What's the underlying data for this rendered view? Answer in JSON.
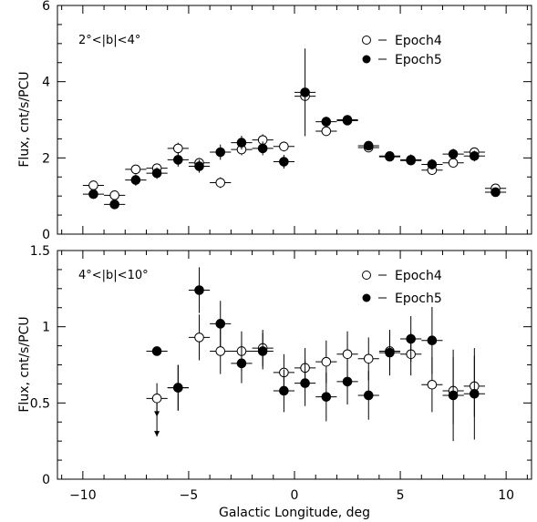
{
  "colors": {
    "marker": "#000000",
    "background": "#ffffff"
  },
  "legend_markers": {
    "open": "open-circle",
    "filled": "filled-circle"
  },
  "xlabel": "Galactic Longitude, deg",
  "xticks": [
    "−10",
    "−5",
    "0",
    "5",
    "10"
  ],
  "chart_data": [
    {
      "type": "scatter",
      "panel_label": "2°<|b|<4°",
      "ylabel": "Flux, cnt/s/PCU",
      "xlim": [
        -11.2,
        11.2
      ],
      "ylim": [
        0,
        6
      ],
      "yticks": [
        "0",
        "2",
        "4",
        "6"
      ],
      "legend_position": "top-right",
      "series": [
        {
          "name": "Epoch4",
          "marker": "open",
          "points": [
            {
              "x": -9.5,
              "y": 1.28,
              "err": 0.1
            },
            {
              "x": -8.5,
              "y": 1.02,
              "err": 0.08
            },
            {
              "x": -7.5,
              "y": 1.7,
              "err": 0.12
            },
            {
              "x": -6.5,
              "y": 1.73,
              "err": 0.12
            },
            {
              "x": -5.5,
              "y": 2.25,
              "err": 0.15
            },
            {
              "x": -4.5,
              "y": 1.87,
              "err": 0.13
            },
            {
              "x": -3.5,
              "y": 1.35,
              "err": 0.14
            },
            {
              "x": -2.5,
              "y": 2.22,
              "err": 0.15
            },
            {
              "x": -1.5,
              "y": 2.47,
              "err": 0.15
            },
            {
              "x": -0.5,
              "y": 2.3,
              "err": 0.13
            },
            {
              "x": 0.5,
              "y": 3.62,
              "err": 0.1
            },
            {
              "x": 1.5,
              "y": 2.7,
              "err": 0.1
            },
            {
              "x": 2.5,
              "y": 3.0,
              "err": 0.08
            },
            {
              "x": 3.5,
              "y": 2.27,
              "err": 0.08
            },
            {
              "x": 4.5,
              "y": 2.03,
              "err": 0.1
            },
            {
              "x": 5.5,
              "y": 1.93,
              "err": 0.1
            },
            {
              "x": 6.5,
              "y": 1.68,
              "err": 0.12
            },
            {
              "x": 7.5,
              "y": 1.87,
              "err": 0.12
            },
            {
              "x": 8.5,
              "y": 2.15,
              "err": 0.12
            },
            {
              "x": 9.5,
              "y": 1.2,
              "err": 0.12
            }
          ]
        },
        {
          "name": "Epoch5",
          "marker": "filled",
          "points": [
            {
              "x": -9.5,
              "y": 1.05,
              "err": 0.12
            },
            {
              "x": -8.5,
              "y": 0.78,
              "err": 0.1
            },
            {
              "x": -7.5,
              "y": 1.42,
              "err": 0.15
            },
            {
              "x": -6.5,
              "y": 1.6,
              "err": 0.15
            },
            {
              "x": -5.5,
              "y": 1.95,
              "err": 0.18
            },
            {
              "x": -4.5,
              "y": 1.78,
              "err": 0.17
            },
            {
              "x": -3.5,
              "y": 2.15,
              "err": 0.2
            },
            {
              "x": -2.5,
              "y": 2.4,
              "err": 0.18
            },
            {
              "x": -1.5,
              "y": 2.25,
              "err": 0.18
            },
            {
              "x": -0.5,
              "y": 1.9,
              "err": 0.18
            },
            {
              "x": 0.5,
              "y": 3.72,
              "err": 1.15
            },
            {
              "x": 1.5,
              "y": 2.95,
              "err": 0.13
            },
            {
              "x": 2.5,
              "y": 2.98,
              "err": 0.1
            },
            {
              "x": 3.5,
              "y": 2.32,
              "err": 0.1
            },
            {
              "x": 4.5,
              "y": 2.05,
              "err": 0.12
            },
            {
              "x": 5.5,
              "y": 1.95,
              "err": 0.14
            },
            {
              "x": 6.5,
              "y": 1.83,
              "err": 0.14
            },
            {
              "x": 7.5,
              "y": 2.1,
              "err": 0.14
            },
            {
              "x": 8.5,
              "y": 2.05,
              "err": 0.14
            },
            {
              "x": 9.5,
              "y": 1.1,
              "err": 0.12
            }
          ]
        }
      ]
    },
    {
      "type": "scatter",
      "panel_label": "4°<|b|<10°",
      "ylabel": "Flux, cnt/s/PCU",
      "xlim": [
        -11.2,
        11.2
      ],
      "ylim": [
        0,
        1.5
      ],
      "yticks": [
        "0",
        "0.5",
        "1",
        "1.5"
      ],
      "legend_position": "top-right",
      "series": [
        {
          "name": "Epoch4",
          "marker": "open",
          "points": [
            {
              "x": -6.5,
              "y": 0.53,
              "err": 0.1,
              "upper_limit": 0.28
            },
            {
              "x": -5.5,
              "y": 0.6,
              "err": 0.15
            },
            {
              "x": -4.5,
              "y": 0.93,
              "err": 0.15
            },
            {
              "x": -3.5,
              "y": 0.84,
              "err": 0.15
            },
            {
              "x": -2.5,
              "y": 0.84,
              "err": 0.13
            },
            {
              "x": -1.5,
              "y": 0.86,
              "err": 0.12
            },
            {
              "x": -0.5,
              "y": 0.7,
              "err": 0.12
            },
            {
              "x": 0.5,
              "y": 0.73,
              "err": 0.13
            },
            {
              "x": 1.5,
              "y": 0.77,
              "err": 0.14
            },
            {
              "x": 2.5,
              "y": 0.82,
              "err": 0.15
            },
            {
              "x": 3.5,
              "y": 0.79,
              "err": 0.14
            },
            {
              "x": 4.5,
              "y": 0.84,
              "err": 0.12
            },
            {
              "x": 5.5,
              "y": 0.82,
              "err": 0.14
            },
            {
              "x": 6.5,
              "y": 0.62,
              "err": 0.18
            },
            {
              "x": 7.5,
              "y": 0.58,
              "err": 0.22
            },
            {
              "x": 8.5,
              "y": 0.61,
              "err": 0.2
            }
          ]
        },
        {
          "name": "Epoch5",
          "marker": "filled",
          "points": [
            {
              "x": -6.5,
              "y": 0.84,
              "err": 0.0
            },
            {
              "x": -5.5,
              "y": 0.6,
              "err": 0.15
            },
            {
              "x": -4.5,
              "y": 1.24,
              "err": 0.15
            },
            {
              "x": -3.5,
              "y": 1.02,
              "err": 0.15
            },
            {
              "x": -2.5,
              "y": 0.76,
              "err": 0.13
            },
            {
              "x": -1.5,
              "y": 0.84,
              "err": 0.12
            },
            {
              "x": -0.5,
              "y": 0.58,
              "err": 0.14
            },
            {
              "x": 0.5,
              "y": 0.63,
              "err": 0.15
            },
            {
              "x": 1.5,
              "y": 0.54,
              "err": 0.16
            },
            {
              "x": 2.5,
              "y": 0.64,
              "err": 0.15
            },
            {
              "x": 3.5,
              "y": 0.55,
              "err": 0.16
            },
            {
              "x": 4.5,
              "y": 0.83,
              "err": 0.15
            },
            {
              "x": 5.5,
              "y": 0.92,
              "err": 0.15
            },
            {
              "x": 6.5,
              "y": 0.91,
              "err": 0.22
            },
            {
              "x": 7.5,
              "y": 0.55,
              "err": 0.3
            },
            {
              "x": 8.5,
              "y": 0.56,
              "err": 0.3
            }
          ]
        }
      ]
    }
  ]
}
